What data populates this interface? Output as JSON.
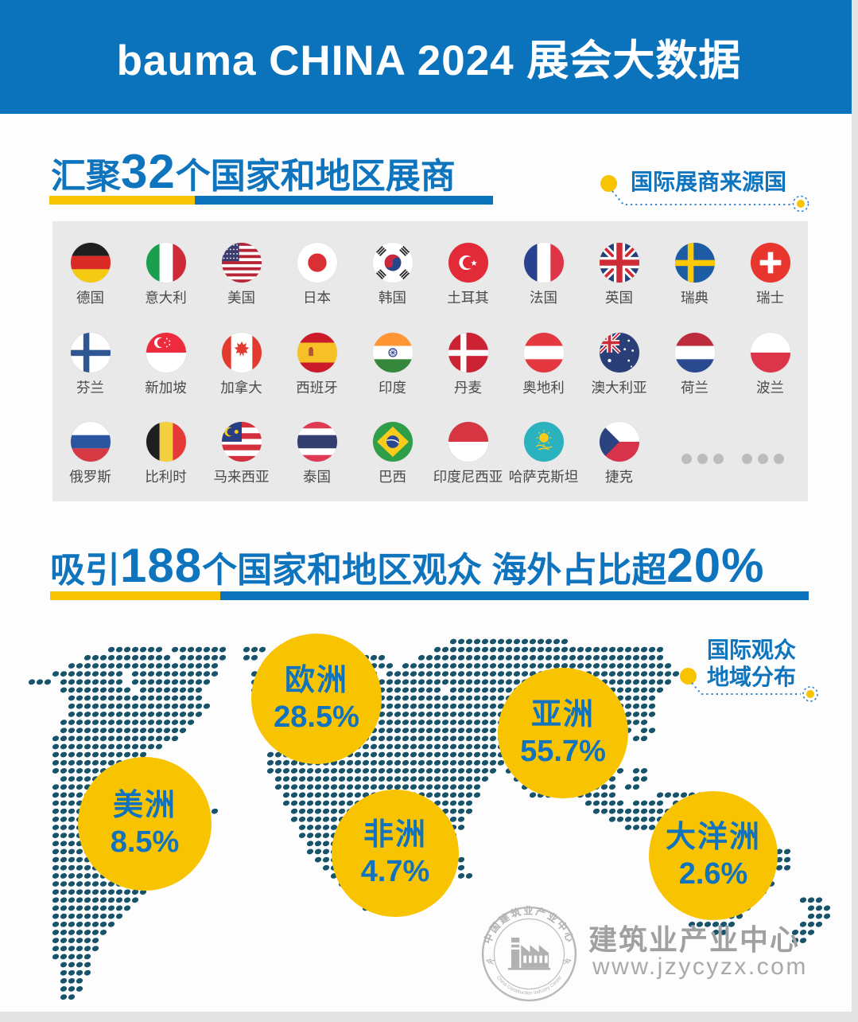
{
  "header": {
    "title": "bauma CHINA 2024 展会大数据"
  },
  "section_exhibitors": {
    "title_parts": {
      "prefix": "汇聚",
      "number": "32",
      "suffix": "个国家和地区展商"
    },
    "tag_label": "国际展商来源国",
    "countries": [
      {
        "name": "德国",
        "flag": "de"
      },
      {
        "name": "意大利",
        "flag": "it"
      },
      {
        "name": "美国",
        "flag": "us"
      },
      {
        "name": "日本",
        "flag": "jp"
      },
      {
        "name": "韩国",
        "flag": "kr"
      },
      {
        "name": "土耳其",
        "flag": "tr"
      },
      {
        "name": "法国",
        "flag": "fr"
      },
      {
        "name": "英国",
        "flag": "gb"
      },
      {
        "name": "瑞典",
        "flag": "se"
      },
      {
        "name": "瑞士",
        "flag": "ch"
      },
      {
        "name": "芬兰",
        "flag": "fi"
      },
      {
        "name": "新加坡",
        "flag": "sg"
      },
      {
        "name": "加拿大",
        "flag": "ca"
      },
      {
        "name": "西班牙",
        "flag": "es"
      },
      {
        "name": "印度",
        "flag": "in"
      },
      {
        "name": "丹麦",
        "flag": "dk"
      },
      {
        "name": "奥地利",
        "flag": "at"
      },
      {
        "name": "澳大利亚",
        "flag": "au"
      },
      {
        "name": "荷兰",
        "flag": "nl"
      },
      {
        "name": "波兰",
        "flag": "pl"
      },
      {
        "name": "俄罗斯",
        "flag": "ru"
      },
      {
        "name": "比利时",
        "flag": "be"
      },
      {
        "name": "马来西亚",
        "flag": "my"
      },
      {
        "name": "泰国",
        "flag": "th"
      },
      {
        "name": "巴西",
        "flag": "br"
      },
      {
        "name": "印度尼西亚",
        "flag": "id"
      },
      {
        "name": "哈萨克斯坦",
        "flag": "kz"
      },
      {
        "name": "捷克",
        "flag": "cz"
      }
    ],
    "more_dots_count": 6
  },
  "section_visitors": {
    "title_parts": {
      "prefix": "吸引",
      "number": "188",
      "mid": "个国家和地区观众 海外占比超",
      "number2": "20%"
    },
    "tag_label_line1": "国际观众",
    "tag_label_line2": "地域分布",
    "bubbles": [
      {
        "region": "欧洲",
        "percent": "28.5%"
      },
      {
        "region": "亚洲",
        "percent": "55.7%"
      },
      {
        "region": "美洲",
        "percent": "8.5%"
      },
      {
        "region": "非洲",
        "percent": "4.7%"
      },
      {
        "region": "大洋洲",
        "percent": "2.6%"
      }
    ]
  },
  "chart_data": {
    "type": "pie",
    "title": "国际观众地域分布",
    "categories": [
      "亚洲",
      "欧洲",
      "美洲",
      "非洲",
      "大洋洲"
    ],
    "values": [
      55.7,
      28.5,
      8.5,
      4.7,
      2.6
    ],
    "unit": "%",
    "render_style": "world-map-bubbles",
    "legend_position": "on-map"
  },
  "footer": {
    "brand": "建筑业产业中心",
    "website": "www.jzycyzx.com",
    "seal_top": "中国建筑业产业中心",
    "seal_bottom": "China Construction Industry Center"
  },
  "colors": {
    "primary_blue": "#0B72BC",
    "accent_yellow": "#F8C301",
    "map_teal": "#17536B",
    "panel_gray": "#E9E9E9"
  }
}
